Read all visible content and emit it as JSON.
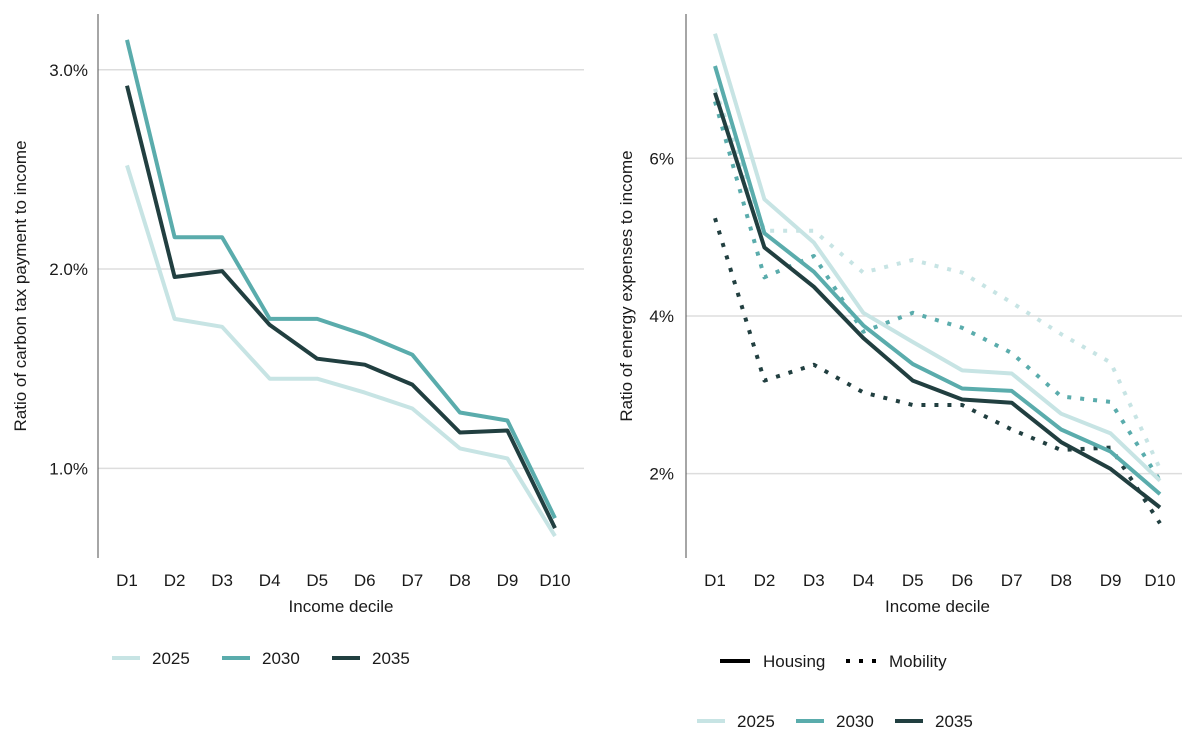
{
  "colors": {
    "2025": "#c7e4e4",
    "2030": "#5aacac",
    "2035": "#213f40",
    "grid": "#dddddd",
    "axis": "#4d4d4d"
  },
  "chart_data": [
    {
      "type": "line",
      "xlabel": "Income decile",
      "ylabel": "Ratio of carbon tax payment to income",
      "categories": [
        "D1",
        "D2",
        "D3",
        "D4",
        "D5",
        "D6",
        "D7",
        "D8",
        "D9",
        "D10"
      ],
      "yticks": [
        "1.0%",
        "2.0%",
        "3.0%"
      ],
      "ytick_values": [
        0.01,
        0.02,
        0.03
      ],
      "ylim": [
        0.0055,
        0.0328
      ],
      "grid": true,
      "legend_position": "bottom",
      "legend": [
        "2025",
        "2030",
        "2035"
      ],
      "series": [
        {
          "name": "2025",
          "color": "2025",
          "style": "solid",
          "values": [
            0.0252,
            0.0175,
            0.0171,
            0.0145,
            0.0145,
            0.0138,
            0.013,
            0.011,
            0.0105,
            0.0066
          ]
        },
        {
          "name": "2030",
          "color": "2030",
          "style": "solid",
          "values": [
            0.0315,
            0.0216,
            0.0216,
            0.0175,
            0.0175,
            0.0167,
            0.0157,
            0.0128,
            0.0124,
            0.0075
          ]
        },
        {
          "name": "2035",
          "color": "2035",
          "style": "solid",
          "values": [
            0.0292,
            0.0196,
            0.0199,
            0.0172,
            0.0155,
            0.0152,
            0.0142,
            0.0118,
            0.0119,
            0.007
          ]
        }
      ]
    },
    {
      "type": "line",
      "xlabel": "Income decile",
      "ylabel": "Ratio of energy expenses to income",
      "categories": [
        "D1",
        "D2",
        "D3",
        "D4",
        "D5",
        "D6",
        "D7",
        "D8",
        "D9",
        "D10"
      ],
      "yticks": [
        "2%",
        "4%",
        "6%"
      ],
      "ytick_values": [
        0.02,
        0.04,
        0.06
      ],
      "ylim": [
        0.0093,
        0.0783
      ],
      "grid": true,
      "legend_position": "bottom",
      "legend_type": [
        {
          "label": "Housing",
          "style": "solid"
        },
        {
          "label": "Mobility",
          "style": "dotted"
        }
      ],
      "legend": [
        "2025",
        "2030",
        "2035"
      ],
      "series": [
        {
          "name": "Housing 2025",
          "color": "2025",
          "style": "solid",
          "values": [
            0.0758,
            0.0548,
            0.0493,
            0.0404,
            0.0367,
            0.0331,
            0.0327,
            0.0276,
            0.0251,
            0.0191
          ]
        },
        {
          "name": "Housing 2030",
          "color": "2030",
          "style": "solid",
          "values": [
            0.0717,
            0.0505,
            0.0456,
            0.0388,
            0.0339,
            0.0308,
            0.0305,
            0.0256,
            0.0228,
            0.0174
          ]
        },
        {
          "name": "Housing 2035",
          "color": "2035",
          "style": "solid",
          "values": [
            0.0683,
            0.0487,
            0.0437,
            0.0372,
            0.0318,
            0.0294,
            0.029,
            0.024,
            0.0206,
            0.0157
          ]
        },
        {
          "name": "Mobility 2025",
          "color": "2025",
          "style": "dotted",
          "values": [
            0.0688,
            0.0508,
            0.0508,
            0.0455,
            0.0471,
            0.0455,
            0.0417,
            0.0377,
            0.0341,
            0.0206
          ]
        },
        {
          "name": "Mobility 2030",
          "color": "2030",
          "style": "dotted",
          "values": [
            0.0672,
            0.0449,
            0.0476,
            0.038,
            0.0404,
            0.0385,
            0.0353,
            0.0298,
            0.0291,
            0.0191
          ]
        },
        {
          "name": "Mobility 2035",
          "color": "2035",
          "style": "dotted",
          "values": [
            0.0524,
            0.0318,
            0.0338,
            0.0303,
            0.0287,
            0.0287,
            0.0256,
            0.023,
            0.0233,
            0.0137
          ]
        }
      ]
    }
  ]
}
